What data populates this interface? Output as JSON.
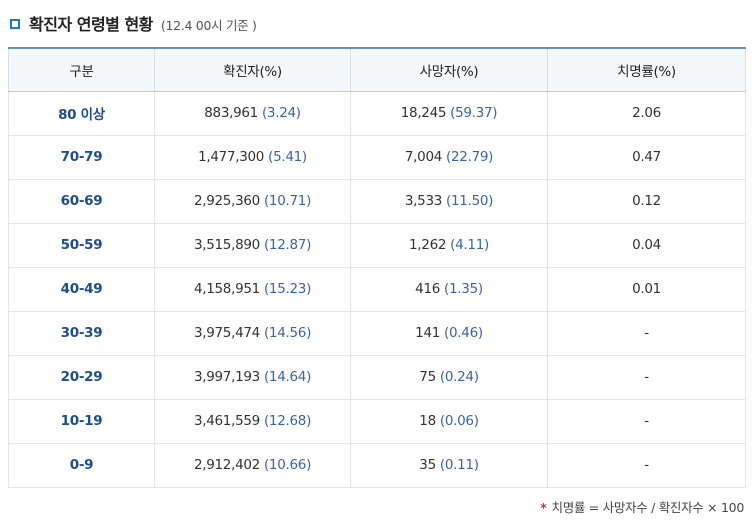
{
  "header": {
    "title": "확진자 연령별 현황",
    "subtitle": "(12.4 00시 기준 )"
  },
  "table": {
    "columns": [
      "구분",
      "확진자(%)",
      "사망자(%)",
      "치명률(%)"
    ],
    "rows": [
      {
        "group": "80 이상",
        "cases": "883,961",
        "cases_pct": "(3.24)",
        "deaths": "18,245",
        "deaths_pct": "(59.37)",
        "cfr": "2.06"
      },
      {
        "group": "70-79",
        "cases": "1,477,300",
        "cases_pct": "(5.41)",
        "deaths": "7,004",
        "deaths_pct": "(22.79)",
        "cfr": "0.47"
      },
      {
        "group": "60-69",
        "cases": "2,925,360",
        "cases_pct": "(10.71)",
        "deaths": "3,533",
        "deaths_pct": "(11.50)",
        "cfr": "0.12"
      },
      {
        "group": "50-59",
        "cases": "3,515,890",
        "cases_pct": "(12.87)",
        "deaths": "1,262",
        "deaths_pct": "(4.11)",
        "cfr": "0.04"
      },
      {
        "group": "40-49",
        "cases": "4,158,951",
        "cases_pct": "(15.23)",
        "deaths": "416",
        "deaths_pct": "(1.35)",
        "cfr": "0.01"
      },
      {
        "group": "30-39",
        "cases": "3,975,474",
        "cases_pct": "(14.56)",
        "deaths": "141",
        "deaths_pct": "(0.46)",
        "cfr": "-"
      },
      {
        "group": "20-29",
        "cases": "3,997,193",
        "cases_pct": "(14.64)",
        "deaths": "75",
        "deaths_pct": "(0.24)",
        "cfr": "-"
      },
      {
        "group": "10-19",
        "cases": "3,461,559",
        "cases_pct": "(12.68)",
        "deaths": "18",
        "deaths_pct": "(0.06)",
        "cfr": "-"
      },
      {
        "group": "0-9",
        "cases": "2,912,402",
        "cases_pct": "(10.66)",
        "deaths": "35",
        "deaths_pct": "(0.11)",
        "cfr": "-"
      }
    ]
  },
  "footnote": {
    "marker": "*",
    "text": "치명률 = 사망자수 / 확진자수 × 100"
  },
  "colors": {
    "accent": "#1f78c8",
    "group_text": "#1f4e8c",
    "value_blue": "#3a64a8",
    "header_bg": "#f5f8fb",
    "footnote_marker": "#d32f2f"
  },
  "icons": {
    "title_marker": "square-outline-icon"
  }
}
